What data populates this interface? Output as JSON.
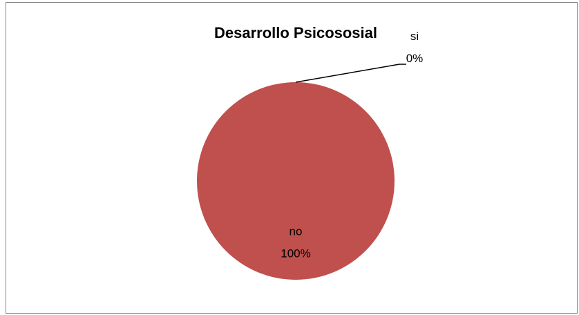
{
  "chart_data": {
    "type": "pie",
    "title": "Desarrollo Psicososial",
    "categories": [
      "si",
      "no"
    ],
    "values": [
      0,
      100
    ],
    "data_labels": [
      "0%",
      "100%"
    ],
    "colors": [
      "#4F81BD",
      "#C0504D"
    ],
    "legend": "none",
    "grid": false
  }
}
